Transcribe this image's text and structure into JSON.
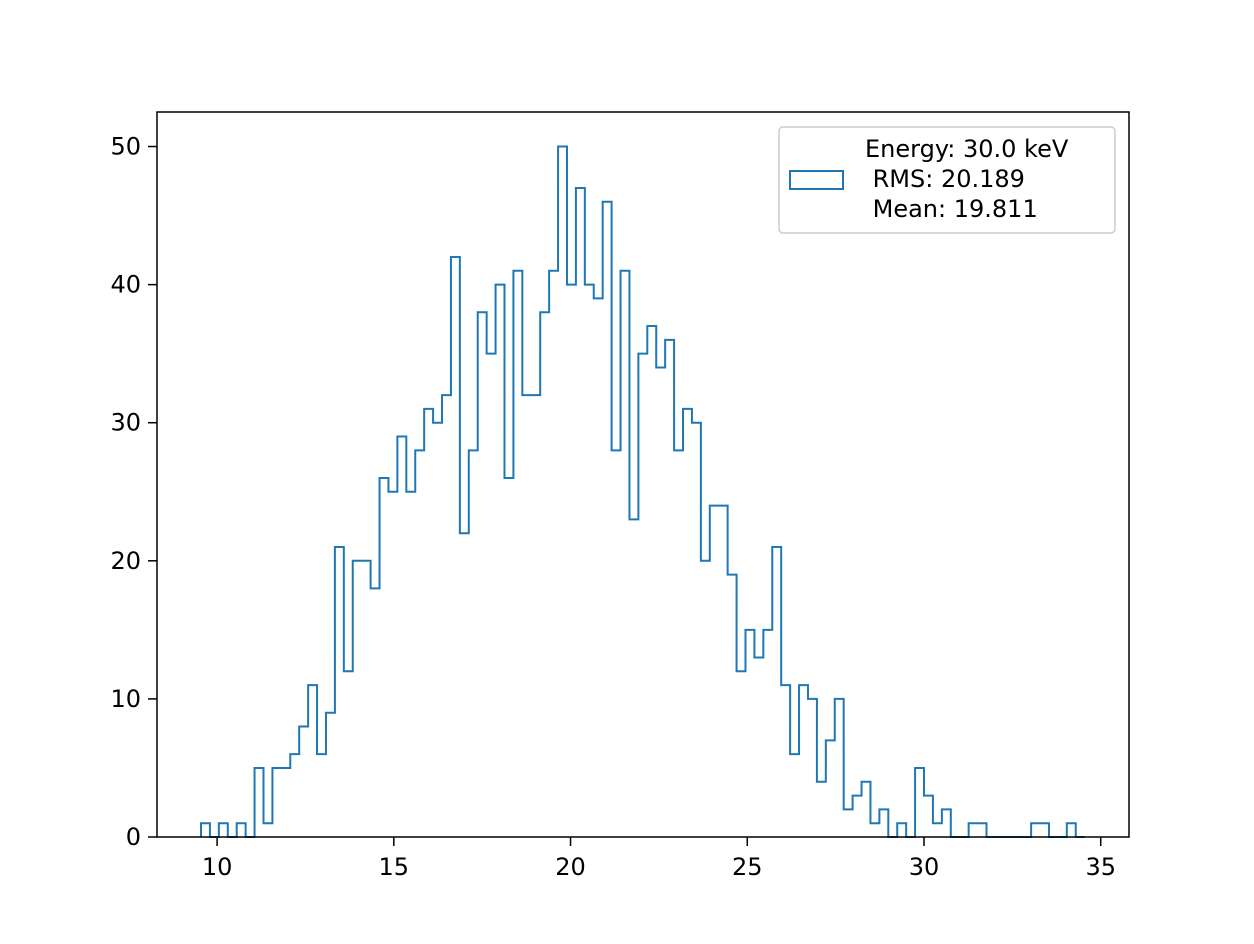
{
  "chart_data": {
    "type": "histogram",
    "histtype": "step",
    "series": [
      {
        "name": "Energy: 30.0 keV\n RMS: 20.189\n Mean: 19.811",
        "color": "#1f77b4",
        "bin_width": 0.2525,
        "bin_starts": [
          9.545,
          9.798,
          10.05,
          10.303,
          10.555,
          10.808,
          11.06,
          11.313,
          11.566,
          11.818,
          12.071,
          12.323,
          12.576,
          12.828,
          13.081,
          13.333,
          13.586,
          13.838,
          14.091,
          14.343,
          14.596,
          14.848,
          15.101,
          15.354,
          15.606,
          15.859,
          16.111,
          16.364,
          16.616,
          16.869,
          17.121,
          17.374,
          17.626,
          17.879,
          18.131,
          18.384,
          18.636,
          18.889,
          19.142,
          19.394,
          19.647,
          19.899,
          20.152,
          20.404,
          20.657,
          20.909,
          21.162,
          21.414,
          21.667,
          21.919,
          22.172,
          22.424,
          22.677,
          22.93,
          23.182,
          23.435,
          23.687,
          23.94,
          24.192,
          24.445,
          24.697,
          24.95,
          25.202,
          25.455,
          25.707,
          25.96,
          26.212,
          26.465,
          26.718,
          26.97,
          27.223,
          27.475,
          27.728,
          27.98,
          28.233,
          28.485,
          28.738,
          28.99,
          29.243,
          29.495,
          29.748,
          30.0,
          30.253,
          30.506,
          30.758,
          31.011,
          31.263,
          31.516,
          31.768,
          32.021,
          32.273,
          32.526,
          32.778,
          33.031,
          33.283,
          33.536,
          33.788,
          34.041,
          34.294
        ],
        "counts": [
          1,
          0,
          1,
          0,
          1,
          0,
          5,
          1,
          5,
          5,
          6,
          8,
          11,
          6,
          9,
          21,
          12,
          20,
          20,
          18,
          26,
          25,
          29,
          25,
          28,
          31,
          30,
          32,
          42,
          22,
          28,
          38,
          35,
          40,
          26,
          41,
          32,
          32,
          38,
          41,
          50,
          40,
          47,
          40,
          39,
          46,
          28,
          41,
          23,
          35,
          37,
          34,
          36,
          28,
          31,
          30,
          20,
          24,
          24,
          19,
          12,
          15,
          13,
          15,
          21,
          11,
          6,
          11,
          10,
          4,
          7,
          10,
          2,
          3,
          4,
          1,
          2,
          0,
          1,
          0,
          5,
          3,
          1,
          2,
          0,
          0,
          1,
          1,
          0,
          0,
          0,
          0,
          0,
          1,
          1,
          0,
          0,
          1,
          0
        ]
      }
    ],
    "title": "",
    "xlabel": "",
    "ylabel": "",
    "xlim": [
      8.3,
      35.8
    ],
    "ylim": [
      0,
      52.5
    ],
    "xticks": [
      10,
      15,
      20,
      25,
      30,
      35
    ],
    "yticks": [
      0,
      10,
      20,
      30,
      40,
      50
    ],
    "grid": false,
    "legend_position": "upper right"
  }
}
